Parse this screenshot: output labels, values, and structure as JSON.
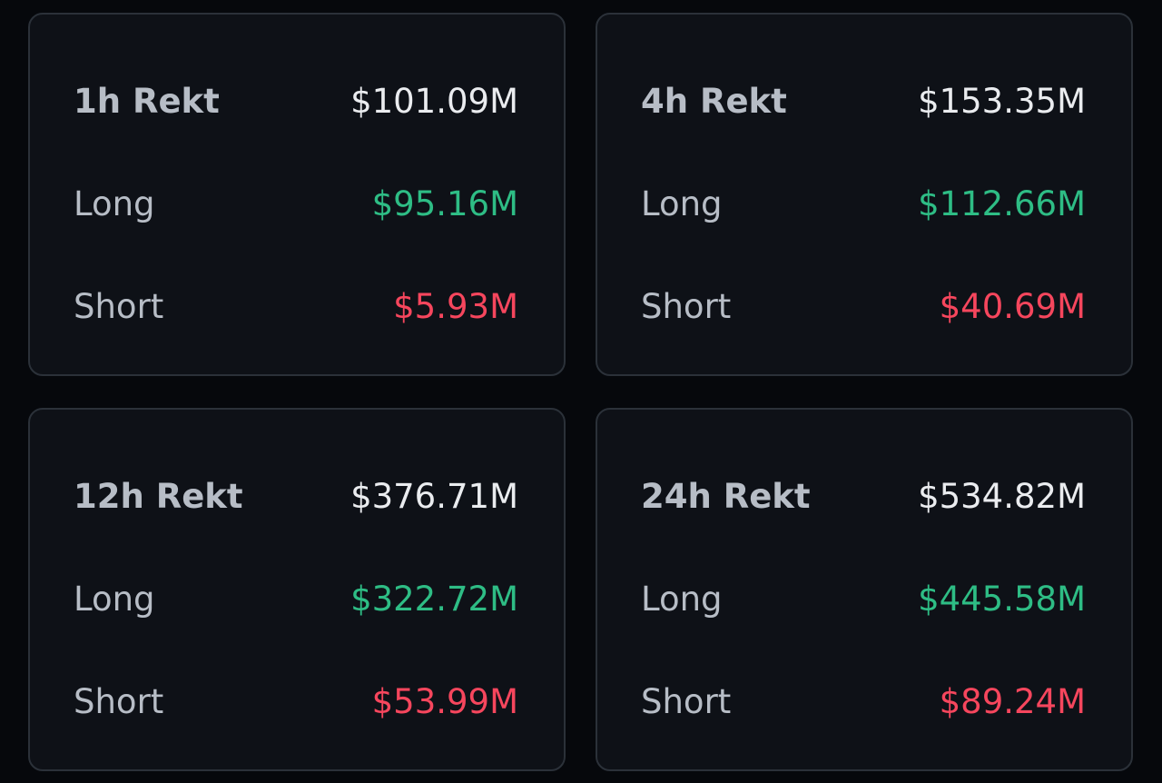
{
  "colors": {
    "background": "#06080c",
    "card": "#0e1117",
    "border": "#2b3139",
    "label": "#b7bdc6",
    "total": "#eaecef",
    "long": "#2ebd85",
    "short": "#f6465d"
  },
  "cards": [
    {
      "title": "1h Rekt",
      "total": "$101.09M",
      "long_label": "Long",
      "long": "$95.16M",
      "short_label": "Short",
      "short": "$5.93M"
    },
    {
      "title": "4h Rekt",
      "total": "$153.35M",
      "long_label": "Long",
      "long": "$112.66M",
      "short_label": "Short",
      "short": "$40.69M"
    },
    {
      "title": "12h Rekt",
      "total": "$376.71M",
      "long_label": "Long",
      "long": "$322.72M",
      "short_label": "Short",
      "short": "$53.99M"
    },
    {
      "title": "24h Rekt",
      "total": "$534.82M",
      "long_label": "Long",
      "long": "$445.58M",
      "short_label": "Short",
      "short": "$89.24M"
    }
  ]
}
